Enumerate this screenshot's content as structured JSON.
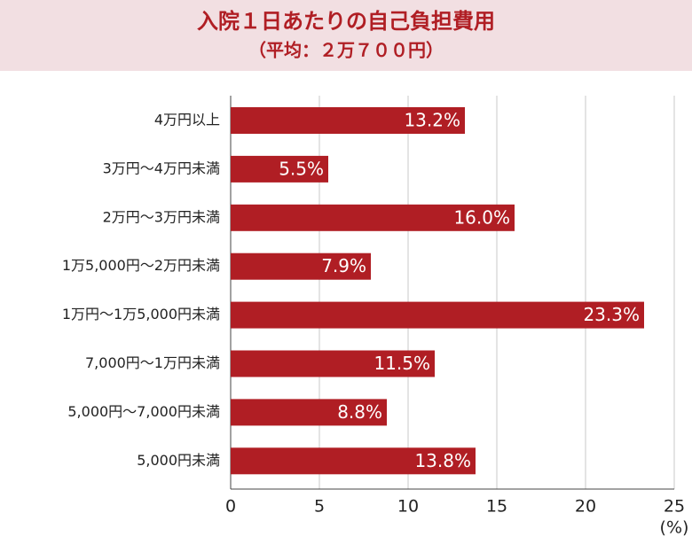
{
  "chart_data": {
    "type": "barh",
    "title": "入院１日あたりの自己負担費用",
    "subtitle": "（平均：２万７００円）",
    "xlabel": "(%)",
    "categories": [
      "4万円以上",
      "3万円～4万円未満",
      "2万円～3万円未満",
      "1万5,000円～2万円未満",
      "1万円～1万5,000円未満",
      "7,000円～1万円未満",
      "5,000円～7,000円未満",
      "5,000円未満"
    ],
    "values": [
      13.2,
      5.5,
      16.0,
      7.9,
      23.3,
      11.5,
      8.8,
      13.8
    ],
    "value_labels": [
      "13.2%",
      "5.5%",
      "16.0%",
      "7.9%",
      "23.3%",
      "11.5%",
      "8.8%",
      "13.8%"
    ],
    "color": "#b01e24",
    "xlim": [
      0,
      25
    ],
    "xticks": [
      0,
      5,
      10,
      15,
      20,
      25
    ],
    "grid": true
  }
}
